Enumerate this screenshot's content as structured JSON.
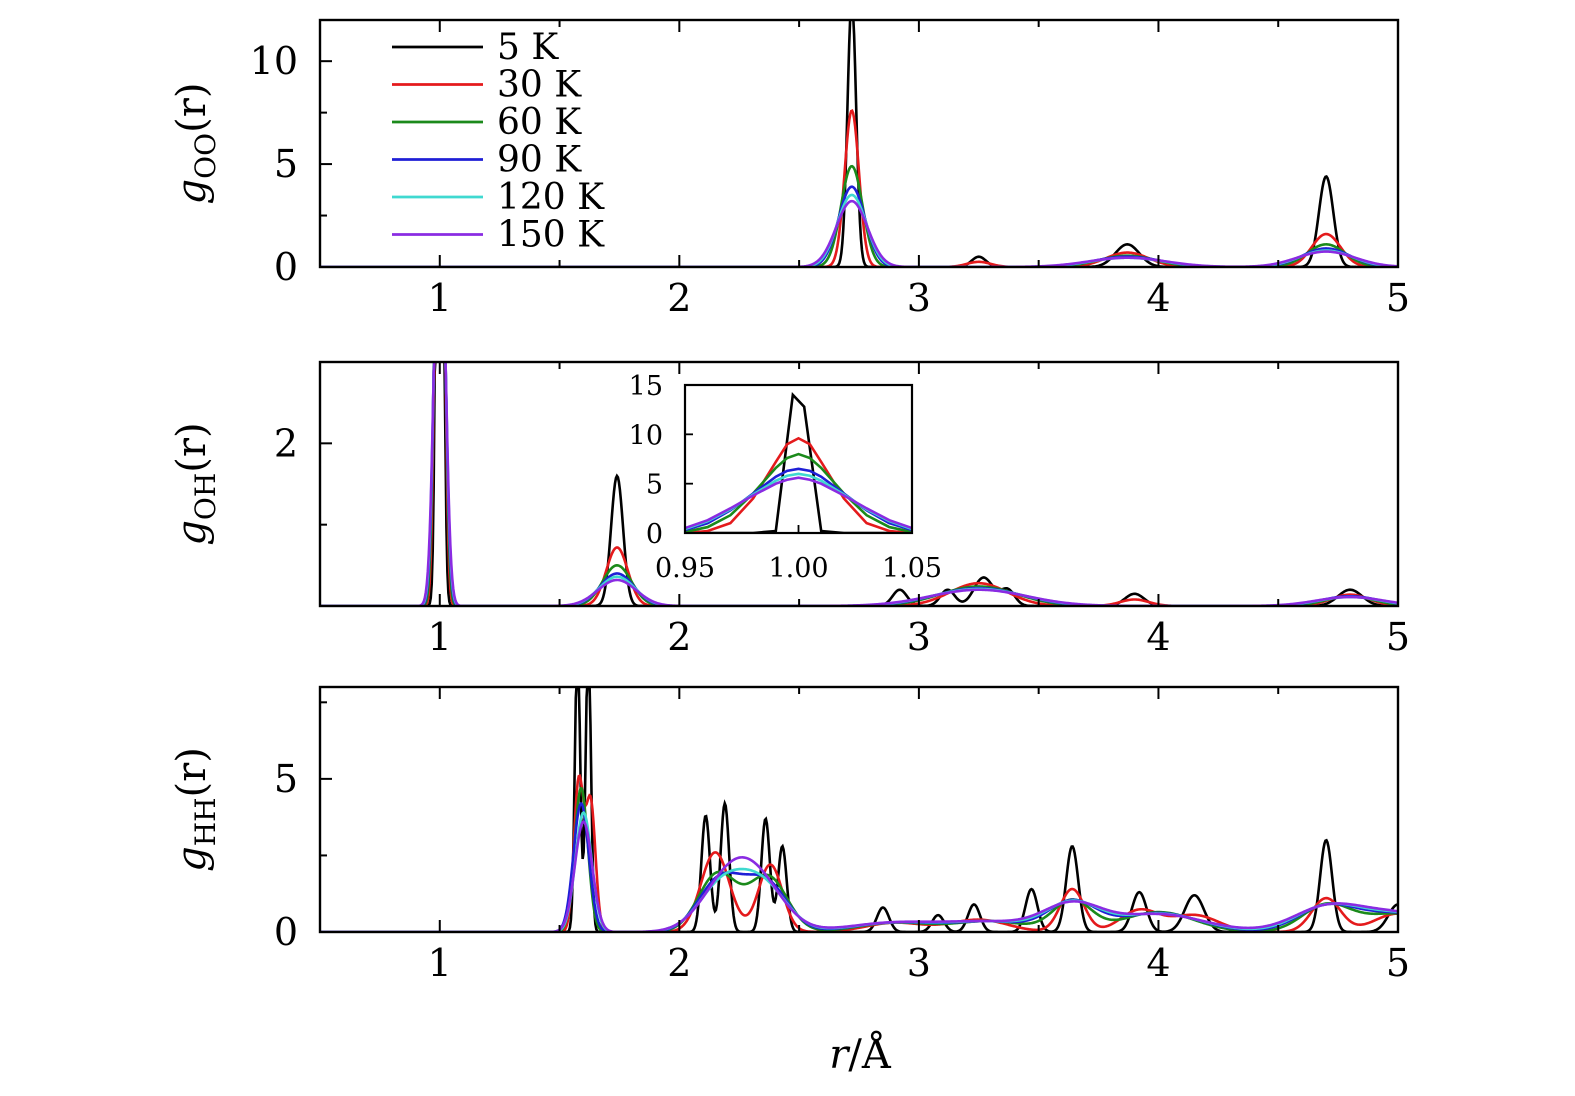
{
  "figure": {
    "xlabel_var": "r",
    "xlabel_unit": "/Å"
  },
  "legend": [
    {
      "label": "5 K",
      "color": "#000000"
    },
    {
      "label": "30 K",
      "color": "#e41a1c"
    },
    {
      "label": "60 K",
      "color": "#1b8a1b"
    },
    {
      "label": "90 K",
      "color": "#1f1fd6"
    },
    {
      "label": "120 K",
      "color": "#3fd9d0"
    },
    {
      "label": "150 K",
      "color": "#8a2be2"
    }
  ],
  "chart_data": [
    {
      "type": "line",
      "panel": "top",
      "ylabel_var": "g",
      "ylabel_sub": "OO",
      "ylabel_arg": "(r)",
      "xlim": [
        0.5,
        5
      ],
      "ylim": [
        0,
        12
      ],
      "xticks": [
        1,
        2,
        3,
        4,
        5
      ],
      "yticks": [
        0,
        5,
        10
      ],
      "series": [
        {
          "name": "5 K",
          "peaks": [
            [
              2.72,
              13.0,
              0.018
            ],
            [
              3.25,
              0.5,
              0.03
            ],
            [
              3.87,
              1.1,
              0.05
            ],
            [
              4.7,
              4.4,
              0.03
            ]
          ]
        },
        {
          "name": "30 K",
          "peaks": [
            [
              2.72,
              7.6,
              0.03
            ],
            [
              3.25,
              0.25,
              0.05
            ],
            [
              3.87,
              0.7,
              0.09
            ],
            [
              4.7,
              1.6,
              0.06
            ]
          ]
        },
        {
          "name": "60 K",
          "peaks": [
            [
              2.72,
              4.9,
              0.045
            ],
            [
              3.87,
              0.55,
              0.12
            ],
            [
              4.7,
              1.1,
              0.08
            ]
          ]
        },
        {
          "name": "90 K",
          "peaks": [
            [
              2.72,
              3.9,
              0.055
            ],
            [
              3.87,
              0.5,
              0.14
            ],
            [
              4.7,
              0.9,
              0.1
            ]
          ]
        },
        {
          "name": "120 K",
          "peaks": [
            [
              2.72,
              3.5,
              0.06
            ],
            [
              3.87,
              0.45,
              0.15
            ],
            [
              4.7,
              0.8,
              0.11
            ]
          ]
        },
        {
          "name": "150 K",
          "peaks": [
            [
              2.72,
              3.2,
              0.065
            ],
            [
              3.87,
              0.45,
              0.16
            ],
            [
              4.7,
              0.75,
              0.12
            ]
          ]
        }
      ]
    },
    {
      "type": "line",
      "panel": "middle",
      "ylabel_var": "g",
      "ylabel_sub": "OH",
      "ylabel_arg": "(r)",
      "xlim": [
        0.5,
        5
      ],
      "ylim": [
        0,
        3
      ],
      "xticks": [
        1,
        2,
        3,
        4,
        5
      ],
      "yticks": [
        2
      ],
      "series": [
        {
          "name": "5 K",
          "peaks": [
            [
              1.0,
              14,
              0.012
            ],
            [
              1.74,
              1.6,
              0.025
            ],
            [
              2.92,
              0.2,
              0.03
            ],
            [
              3.12,
              0.2,
              0.03
            ],
            [
              3.27,
              0.35,
              0.04
            ],
            [
              3.37,
              0.2,
              0.03
            ],
            [
              3.9,
              0.15,
              0.04
            ],
            [
              4.8,
              0.2,
              0.05
            ]
          ]
        },
        {
          "name": "30 K",
          "peaks": [
            [
              1.0,
              9.5,
              0.016
            ],
            [
              1.74,
              0.72,
              0.045
            ],
            [
              3.25,
              0.28,
              0.12
            ],
            [
              3.9,
              0.08,
              0.06
            ],
            [
              4.8,
              0.14,
              0.08
            ]
          ]
        },
        {
          "name": "60 K",
          "peaks": [
            [
              1.0,
              8.0,
              0.018
            ],
            [
              1.74,
              0.5,
              0.06
            ],
            [
              3.25,
              0.24,
              0.16
            ],
            [
              4.8,
              0.12,
              0.1
            ]
          ]
        },
        {
          "name": "90 K",
          "peaks": [
            [
              1.0,
              6.5,
              0.02
            ],
            [
              1.74,
              0.4,
              0.07
            ],
            [
              3.25,
              0.22,
              0.18
            ],
            [
              4.8,
              0.12,
              0.12
            ]
          ]
        },
        {
          "name": "120 K",
          "peaks": [
            [
              1.0,
              6.0,
              0.021
            ],
            [
              1.74,
              0.36,
              0.075
            ],
            [
              3.25,
              0.21,
              0.19
            ],
            [
              4.8,
              0.11,
              0.13
            ]
          ]
        },
        {
          "name": "150 K",
          "peaks": [
            [
              1.0,
              5.6,
              0.022
            ],
            [
              1.74,
              0.32,
              0.08
            ],
            [
              3.25,
              0.2,
              0.2
            ],
            [
              4.8,
              0.11,
              0.14
            ]
          ]
        }
      ],
      "inset": {
        "xlim": [
          0.95,
          1.05
        ],
        "ylim": [
          0,
          15
        ],
        "xticks": [
          "0.95",
          "1.00",
          "1.05"
        ],
        "yticks": [
          0,
          5,
          10,
          15
        ],
        "series": [
          {
            "name": "5 K",
            "x": [
              0.95,
              0.98,
              0.99,
              0.9975,
              1.0025,
              1.01,
              1.02,
              1.05
            ],
            "y": [
              0,
              0,
              0.2,
              14,
              12.8,
              0.2,
              0,
              0
            ]
          },
          {
            "name": "30 K",
            "x": [
              0.95,
              0.96,
              0.97,
              0.98,
              0.99,
              0.995,
              1.0,
              1.005,
              1.01,
              1.02,
              1.03,
              1.04,
              1.05
            ],
            "y": [
              0,
              0.2,
              1.0,
              3.5,
              7.2,
              9.0,
              9.6,
              9.0,
              7.2,
              3.5,
              1.0,
              0.2,
              0
            ]
          },
          {
            "name": "60 K",
            "x": [
              0.95,
              0.96,
              0.97,
              0.98,
              0.99,
              0.995,
              1.0,
              1.005,
              1.01,
              1.02,
              1.03,
              1.04,
              1.05
            ],
            "y": [
              0.1,
              0.6,
              1.8,
              4.0,
              6.6,
              7.6,
              8.0,
              7.6,
              6.6,
              4.0,
              1.8,
              0.6,
              0.1
            ]
          },
          {
            "name": "90 K",
            "x": [
              0.95,
              0.96,
              0.97,
              0.98,
              0.99,
              0.995,
              1.0,
              1.005,
              1.01,
              1.02,
              1.03,
              1.04,
              1.05
            ],
            "y": [
              0.3,
              1.0,
              2.3,
              4.0,
              5.7,
              6.3,
              6.5,
              6.3,
              5.7,
              4.0,
              2.3,
              1.0,
              0.3
            ]
          },
          {
            "name": "120 K",
            "x": [
              0.95,
              0.96,
              0.97,
              0.98,
              0.99,
              0.995,
              1.0,
              1.005,
              1.01,
              1.02,
              1.03,
              1.04,
              1.05
            ],
            "y": [
              0.4,
              1.2,
              2.4,
              3.9,
              5.3,
              5.8,
              6.0,
              5.8,
              5.3,
              3.9,
              2.4,
              1.2,
              0.4
            ]
          },
          {
            "name": "150 K",
            "x": [
              0.95,
              0.96,
              0.97,
              0.98,
              0.99,
              0.995,
              1.0,
              1.005,
              1.01,
              1.02,
              1.03,
              1.04,
              1.05
            ],
            "y": [
              0.5,
              1.3,
              2.5,
              3.8,
              5.0,
              5.4,
              5.6,
              5.4,
              5.0,
              3.8,
              2.5,
              1.3,
              0.5
            ]
          }
        ]
      }
    },
    {
      "type": "line",
      "panel": "bottom",
      "ylabel_var": "g",
      "ylabel_sub": "HH",
      "ylabel_arg": "(r)",
      "xlim": [
        0.5,
        5
      ],
      "ylim": [
        0,
        8
      ],
      "xticks": [
        1,
        2,
        3,
        4,
        5
      ],
      "yticks": [
        0,
        5
      ],
      "series": [
        {
          "name": "5 K",
          "peaks": [
            [
              1.575,
              9.5,
              0.011
            ],
            [
              1.62,
              9.5,
              0.011
            ],
            [
              2.11,
              3.8,
              0.018
            ],
            [
              2.19,
              4.2,
              0.018
            ],
            [
              2.36,
              3.7,
              0.018
            ],
            [
              2.43,
              2.8,
              0.018
            ],
            [
              2.85,
              0.8,
              0.025
            ],
            [
              3.08,
              0.55,
              0.025
            ],
            [
              3.23,
              0.9,
              0.025
            ],
            [
              3.47,
              1.4,
              0.025
            ],
            [
              3.64,
              2.8,
              0.025
            ],
            [
              3.92,
              1.3,
              0.03
            ],
            [
              4.15,
              1.2,
              0.04
            ],
            [
              4.7,
              3.0,
              0.025
            ],
            [
              5.0,
              0.9,
              0.04
            ]
          ]
        },
        {
          "name": "30 K",
          "peaks": [
            [
              1.58,
              4.9,
              0.02
            ],
            [
              1.63,
              4.2,
              0.02
            ],
            [
              2.15,
              2.6,
              0.06
            ],
            [
              2.38,
              2.2,
              0.05
            ],
            [
              2.9,
              0.3,
              0.12
            ],
            [
              3.25,
              0.4,
              0.12
            ],
            [
              3.64,
              1.4,
              0.05
            ],
            [
              3.92,
              0.7,
              0.08
            ],
            [
              4.15,
              0.55,
              0.1
            ],
            [
              4.7,
              1.1,
              0.06
            ],
            [
              5.0,
              0.6,
              0.1
            ]
          ]
        },
        {
          "name": "60 K",
          "peaks": [
            [
              1.59,
              4.7,
              0.028
            ],
            [
              2.16,
              1.9,
              0.08
            ],
            [
              2.37,
              1.8,
              0.08
            ],
            [
              2.9,
              0.3,
              0.15
            ],
            [
              3.3,
              0.35,
              0.15
            ],
            [
              3.64,
              1.0,
              0.08
            ],
            [
              4.0,
              0.65,
              0.15
            ],
            [
              4.7,
              0.85,
              0.1
            ],
            [
              5.0,
              0.6,
              0.15
            ]
          ]
        },
        {
          "name": "90 K",
          "peaks": [
            [
              1.59,
              4.2,
              0.032
            ],
            [
              2.17,
              1.7,
              0.09
            ],
            [
              2.36,
              1.6,
              0.09
            ],
            [
              2.9,
              0.3,
              0.17
            ],
            [
              3.3,
              0.33,
              0.16
            ],
            [
              3.64,
              0.95,
              0.1
            ],
            [
              4.0,
              0.62,
              0.17
            ],
            [
              4.7,
              0.8,
              0.12
            ],
            [
              5.0,
              0.6,
              0.16
            ]
          ]
        },
        {
          "name": "120 K",
          "peaks": [
            [
              1.6,
              3.9,
              0.034
            ],
            [
              2.18,
              1.5,
              0.1
            ],
            [
              2.35,
              1.45,
              0.1
            ],
            [
              2.9,
              0.3,
              0.18
            ],
            [
              3.3,
              0.32,
              0.17
            ],
            [
              3.64,
              0.9,
              0.11
            ],
            [
              4.0,
              0.6,
              0.18
            ],
            [
              4.7,
              0.78,
              0.13
            ],
            [
              5.0,
              0.6,
              0.17
            ]
          ]
        },
        {
          "name": "150 K",
          "peaks": [
            [
              1.6,
              3.6,
              0.036
            ],
            [
              2.2,
              1.5,
              0.11
            ],
            [
              2.33,
              1.4,
              0.11
            ],
            [
              2.9,
              0.3,
              0.19
            ],
            [
              3.3,
              0.31,
              0.18
            ],
            [
              3.64,
              0.85,
              0.12
            ],
            [
              4.0,
              0.58,
              0.19
            ],
            [
              4.7,
              0.75,
              0.14
            ],
            [
              5.0,
              0.6,
              0.18
            ]
          ]
        }
      ]
    }
  ]
}
